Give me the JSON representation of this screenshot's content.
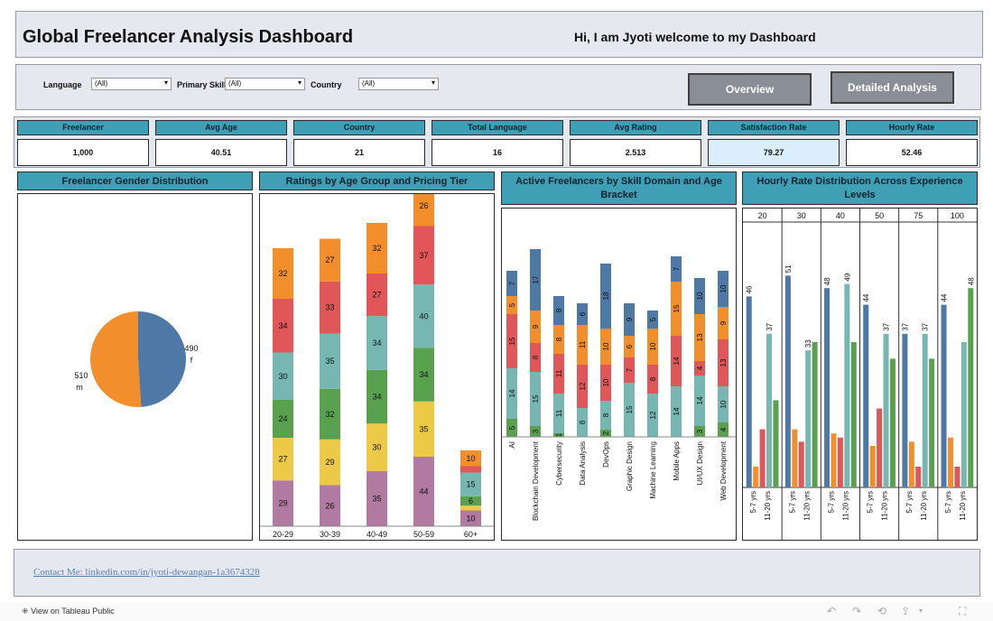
{
  "header": {
    "title": "Global Freelancer Analysis Dashboard",
    "welcome": "Hi, I am Jyoti welcome to my Dashboard"
  },
  "filters": [
    {
      "label": "Language",
      "value": "(All)"
    },
    {
      "label": "Primary Skill",
      "value": "(All)"
    },
    {
      "label": "Country",
      "value": "(All)"
    }
  ],
  "nav": {
    "overview": "Overview",
    "detailed": "Detailed Analysis"
  },
  "kpis": [
    {
      "label": "Freelancer",
      "value": "1,000"
    },
    {
      "label": "Avg Age",
      "value": "40.51"
    },
    {
      "label": "Country",
      "value": "21"
    },
    {
      "label": "Total Language",
      "value": "16"
    },
    {
      "label": "Avg Rating",
      "value": "2.513"
    },
    {
      "label": "Satisfaction Rate",
      "value": "79.27"
    },
    {
      "label": "Hourly Rate",
      "value": "52.46"
    }
  ],
  "panels": {
    "gender": "Freelancer Gender Distribution",
    "ratings": "Ratings by Age Group and Pricing Tier",
    "skills": "Active Freelancers by Skill Domain and Age Bracket",
    "hourly": "Hourly Rate Distribution Across Experience Levels"
  },
  "colors": {
    "blue": "#4e79a7",
    "orange": "#f28e2b",
    "red": "#e15759",
    "teal": "#76b7b2",
    "green": "#59a14f",
    "yellow": "#edc948",
    "purple": "#b07aa1",
    "header": "#3f9fb5",
    "highlight": "#dbeefc"
  },
  "chart_data": [
    {
      "type": "pie",
      "slices": [
        {
          "label": "f",
          "value": 490,
          "color": "#4e79a7"
        },
        {
          "label": "m",
          "value": 510,
          "color": "#f28e2b"
        }
      ]
    },
    {
      "type": "bar",
      "stacked": true,
      "categories": [
        "20-29",
        "30-39",
        "40-49",
        "50-59",
        "60+"
      ],
      "series": [
        {
          "color": "#b07aa1",
          "values": [
            29,
            26,
            35,
            44,
            10
          ]
        },
        {
          "color": "#edc948",
          "values": [
            27,
            29,
            30,
            35,
            3
          ]
        },
        {
          "color": "#59a14f",
          "values": [
            24,
            32,
            34,
            34,
            6
          ]
        },
        {
          "color": "#76b7b2",
          "values": [
            30,
            35,
            34,
            40,
            15
          ]
        },
        {
          "color": "#e15759",
          "values": [
            34,
            33,
            27,
            37,
            4
          ]
        },
        {
          "color": "#f28e2b",
          "values": [
            32,
            27,
            32,
            26,
            10
          ]
        }
      ]
    },
    {
      "type": "bar",
      "stacked": true,
      "categories": [
        "AI",
        "Blockchain Development",
        "Cybersecurity",
        "Data Analysis",
        "DevOps",
        "Graphic Design",
        "Machine Learning",
        "Mobile Apps",
        "UI/UX Design",
        "Web Development"
      ],
      "series": [
        {
          "color": "#59a14f",
          "values": [
            5,
            3,
            1,
            0,
            2,
            0,
            0,
            0,
            3,
            4
          ]
        },
        {
          "color": "#76b7b2",
          "values": [
            14,
            15,
            11,
            8,
            8,
            15,
            12,
            14,
            14,
            10
          ]
        },
        {
          "color": "#e15759",
          "values": [
            15,
            8,
            11,
            12,
            10,
            7,
            8,
            14,
            4,
            13
          ]
        },
        {
          "color": "#f28e2b",
          "values": [
            5,
            9,
            8,
            11,
            10,
            6,
            10,
            15,
            13,
            9
          ]
        },
        {
          "color": "#4e79a7",
          "values": [
            7,
            17,
            8,
            6,
            18,
            9,
            5,
            7,
            10,
            10
          ]
        }
      ]
    },
    {
      "type": "bar",
      "groups": [
        "20",
        "30",
        "40",
        "50",
        "75",
        "100"
      ],
      "xlabels": [
        "5-7 yrs",
        "11-20 yrs"
      ],
      "bars_per_group": [
        [
          {
            "color": "#4e79a7",
            "value": 46
          },
          {
            "color": "#f28e2b",
            "value": 5
          },
          {
            "color": "#e15759",
            "value": 14
          },
          {
            "color": "#76b7b2",
            "value": 37
          },
          {
            "color": "#59a14f",
            "value": 21
          }
        ],
        [
          {
            "color": "#4e79a7",
            "value": 51
          },
          {
            "color": "#f28e2b",
            "value": 14
          },
          {
            "color": "#e15759",
            "value": 11
          },
          {
            "color": "#76b7b2",
            "value": 33
          },
          {
            "color": "#59a14f",
            "value": 35
          }
        ],
        [
          {
            "color": "#4e79a7",
            "value": 48
          },
          {
            "color": "#f28e2b",
            "value": 13
          },
          {
            "color": "#e15759",
            "value": 12
          },
          {
            "color": "#76b7b2",
            "value": 49
          },
          {
            "color": "#59a14f",
            "value": 35
          }
        ],
        [
          {
            "color": "#4e79a7",
            "value": 44
          },
          {
            "color": "#f28e2b",
            "value": 10
          },
          {
            "color": "#e15759",
            "value": 19
          },
          {
            "color": "#76b7b2",
            "value": 37
          },
          {
            "color": "#59a14f",
            "value": 31
          }
        ],
        [
          {
            "color": "#4e79a7",
            "value": 37
          },
          {
            "color": "#f28e2b",
            "value": 11
          },
          {
            "color": "#e15759",
            "value": 5
          },
          {
            "color": "#76b7b2",
            "value": 37
          },
          {
            "color": "#59a14f",
            "value": 31
          }
        ],
        [
          {
            "color": "#4e79a7",
            "value": 44
          },
          {
            "color": "#f28e2b",
            "value": 12
          },
          {
            "color": "#e15759",
            "value": 5
          },
          {
            "color": "#76b7b2",
            "value": 35
          },
          {
            "color": "#59a14f",
            "value": 48
          }
        ]
      ],
      "labeled": {
        "0": [
          0,
          3
        ],
        "1": [
          0,
          3
        ],
        "2": [
          0,
          3
        ],
        "3": [
          0,
          3
        ],
        "4": [
          0,
          3
        ],
        "5": [
          0,
          4
        ]
      }
    }
  ],
  "footer": {
    "contact": "Contact Me: linkedin.com/in/jyoti-dewangan-1a3674328"
  },
  "tableau": {
    "view_link": "View on Tableau Public"
  }
}
